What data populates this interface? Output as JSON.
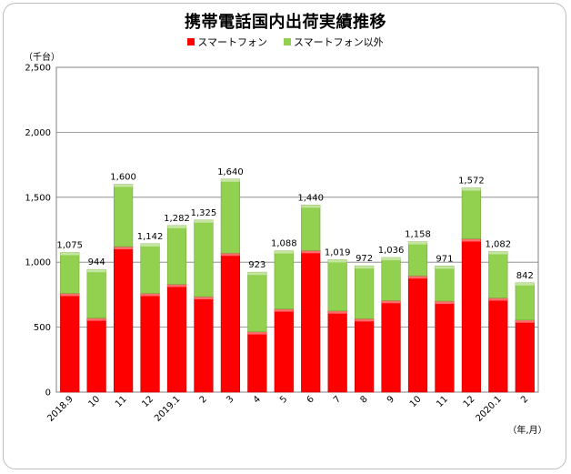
{
  "chart_data": {
    "type": "bar",
    "stacked": true,
    "title": "携帯電話国内出荷実績推移",
    "y_unit": "（千台）",
    "x_unit": "（年,月）",
    "ylim": [
      0,
      2500
    ],
    "yticks": [
      "0",
      "500",
      "1,000",
      "1,500",
      "2,000",
      "2,500"
    ],
    "ytick_values": [
      0,
      500,
      1000,
      1500,
      2000,
      2500
    ],
    "grid": true,
    "legend_position": "top-center",
    "categories": [
      "2018.9",
      "10",
      "11",
      "12",
      "2019.1",
      "2",
      "3",
      "4",
      "5",
      "6",
      "7",
      "8",
      "9",
      "10",
      "11",
      "12",
      "2020.1",
      "2"
    ],
    "series": [
      {
        "name": "スマートフォン",
        "color": "#ff0000",
        "values": [
          760,
          570,
          1120,
          760,
          830,
          735,
          1070,
          465,
          640,
          1090,
          625,
          565,
          705,
          895,
          700,
          1180,
          725,
          555
        ]
      },
      {
        "name": "スマートフォン以外",
        "color": "#92d050",
        "values": [
          315,
          374,
          480,
          382,
          452,
          590,
          570,
          458,
          448,
          350,
          394,
          407,
          331,
          263,
          271,
          392,
          357,
          287
        ]
      }
    ],
    "totals": [
      "1,075",
      "944",
      "1,600",
      "1,142",
      "1,282",
      "1,325",
      "1,640",
      "923",
      "1,088",
      "1,440",
      "1,019",
      "972",
      "1,036",
      "1,158",
      "971",
      "1,572",
      "1,082",
      "842"
    ],
    "total_values": [
      1075,
      944,
      1600,
      1142,
      1282,
      1325,
      1640,
      923,
      1088,
      1440,
      1019,
      972,
      1036,
      1158,
      971,
      1572,
      1082,
      842
    ]
  }
}
